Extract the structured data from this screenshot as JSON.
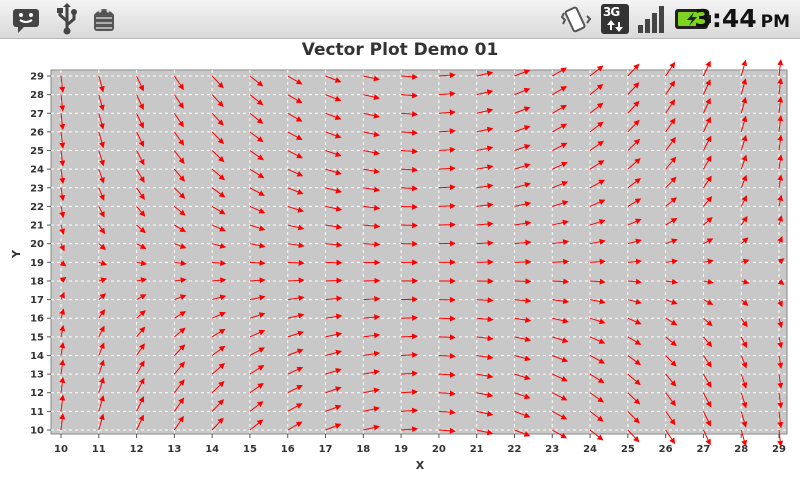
{
  "status_bar": {
    "time": "3:44",
    "ampm": "PM",
    "network_label": "3G",
    "icons": [
      "chat-notification-icon",
      "usb-icon",
      "android-debug-icon",
      "vibrate-icon",
      "network-3g-icon",
      "signal-strength-icon",
      "battery-charging-icon"
    ],
    "battery_color": "#7ed321"
  },
  "chart_data": {
    "type": "vector",
    "title": "Vector Plot Demo 01",
    "xlabel": "X",
    "ylabel": "Y",
    "xlim": [
      10,
      29
    ],
    "ylim": [
      10,
      29
    ],
    "x_ticks": [
      10,
      11,
      12,
      13,
      14,
      15,
      16,
      17,
      18,
      19,
      20,
      21,
      22,
      23,
      24,
      25,
      26,
      27,
      28,
      29
    ],
    "y_ticks": [
      10,
      11,
      12,
      13,
      14,
      15,
      16,
      17,
      18,
      19,
      20,
      21,
      22,
      23,
      24,
      25,
      26,
      27,
      28,
      29
    ],
    "grid": true,
    "vector_color": "#ff0000",
    "vector_formula": "x component = sin(x - 10) * 0.0 + cos-based field; arrow direction at each integer grid point",
    "vectors_note": "one arrow at every integer (x, y) with x in 10..29, y in 10..29",
    "plot_background": "#c8c8c8",
    "grid_color": "#ffffff"
  }
}
